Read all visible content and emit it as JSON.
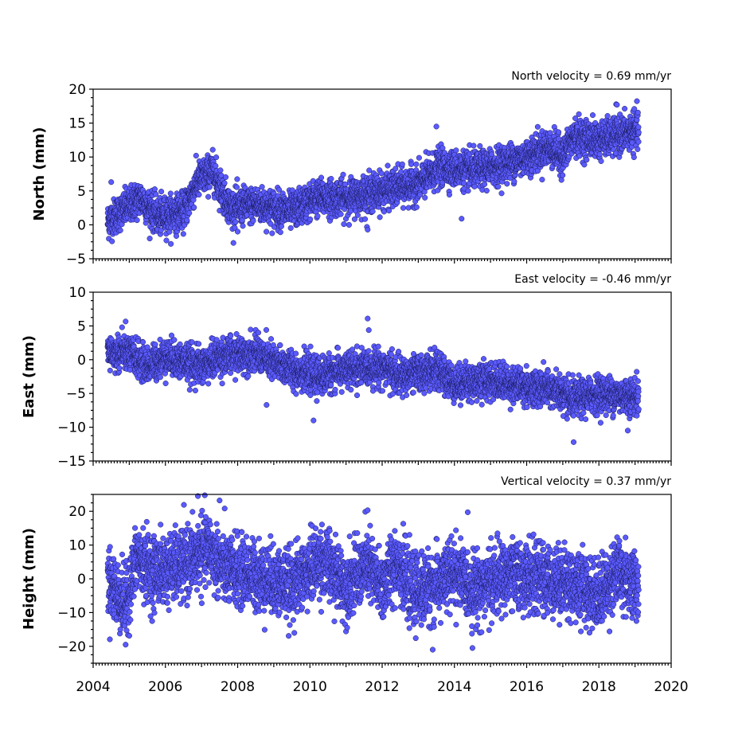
{
  "chart_data": [
    {
      "type": "scatter",
      "annotation": "North velocity = 0.69 mm/yr",
      "ylabel": "North (mm)",
      "xlim": [
        2004,
        2020
      ],
      "ylim": [
        -5,
        20
      ],
      "yticks": [
        -5,
        0,
        5,
        10,
        15,
        20
      ],
      "x_start": 2004.4,
      "x_end": 2019.1,
      "trend": [
        [
          2004.4,
          0.5
        ],
        [
          2005.3,
          4.0
        ],
        [
          2005.8,
          1.2
        ],
        [
          2006.5,
          2.0
        ],
        [
          2006.9,
          6.5
        ],
        [
          2007.3,
          8.0
        ],
        [
          2007.8,
          2.5
        ],
        [
          2008.5,
          3.0
        ],
        [
          2009.0,
          2.5
        ],
        [
          2009.5,
          2.0
        ],
        [
          2010.2,
          4.0
        ],
        [
          2011.0,
          4.0
        ],
        [
          2012.0,
          5.0
        ],
        [
          2013.0,
          6.0
        ],
        [
          2013.6,
          8.5
        ],
        [
          2014.5,
          8.0
        ],
        [
          2015.0,
          8.5
        ],
        [
          2016.0,
          10.0
        ],
        [
          2016.6,
          11.5
        ],
        [
          2017.0,
          10.0
        ],
        [
          2017.3,
          13.0
        ],
        [
          2018.0,
          12.5
        ],
        [
          2019.1,
          14.0
        ]
      ],
      "scatter_sd": 1.3,
      "outliers": [
        [
          2004.5,
          6.3
        ],
        [
          2013.5,
          14.5
        ],
        [
          2014.2,
          0.9
        ],
        [
          2011.6,
          -0.7
        ],
        [
          2018.5,
          17.7
        ],
        [
          2008.0,
          -1.0
        ]
      ]
    },
    {
      "type": "scatter",
      "annotation": "East velocity = -0.46 mm/yr",
      "ylabel": "East (mm)",
      "xlim": [
        2004,
        2020
      ],
      "ylim": [
        -15,
        10
      ],
      "yticks": [
        -15,
        -10,
        -5,
        0,
        5,
        10
      ],
      "x_start": 2004.4,
      "x_end": 2019.1,
      "trend": [
        [
          2004.4,
          1.0
        ],
        [
          2005.0,
          1.0
        ],
        [
          2005.5,
          -1.0
        ],
        [
          2006.0,
          0.5
        ],
        [
          2007.0,
          -1.0
        ],
        [
          2007.5,
          0.5
        ],
        [
          2008.5,
          1.0
        ],
        [
          2009.0,
          -0.5
        ],
        [
          2010.2,
          -2.5
        ],
        [
          2011.0,
          -1.5
        ],
        [
          2012.0,
          -1.0
        ],
        [
          2012.5,
          -2.5
        ],
        [
          2013.5,
          -1.5
        ],
        [
          2014.0,
          -3.5
        ],
        [
          2015.0,
          -3.0
        ],
        [
          2016.0,
          -4.0
        ],
        [
          2016.8,
          -4.5
        ],
        [
          2017.2,
          -6.0
        ],
        [
          2018.0,
          -5.0
        ],
        [
          2019.1,
          -5.5
        ]
      ],
      "scatter_sd": 1.3,
      "outliers": [
        [
          2004.8,
          4.8
        ],
        [
          2011.6,
          6.1
        ],
        [
          2010.1,
          -9.0
        ],
        [
          2017.3,
          -12.2
        ],
        [
          2018.8,
          -10.5
        ],
        [
          2008.8,
          -6.7
        ]
      ]
    },
    {
      "type": "scatter",
      "annotation": "Vertical velocity = 0.37 mm/yr",
      "ylabel": "Height (mm)",
      "xlim": [
        2004,
        2020
      ],
      "ylim": [
        -25,
        25
      ],
      "yticks": [
        -20,
        -10,
        0,
        10,
        20
      ],
      "x_start": 2004.4,
      "x_end": 2019.1,
      "trend": [
        [
          2004.4,
          0.0
        ],
        [
          2004.9,
          -8.0
        ],
        [
          2005.2,
          6.0
        ],
        [
          2005.7,
          2.0
        ],
        [
          2006.5,
          4.0
        ],
        [
          2007.2,
          9.0
        ],
        [
          2007.6,
          3.0
        ],
        [
          2008.5,
          1.0
        ],
        [
          2009.5,
          -2.0
        ],
        [
          2010.3,
          6.0
        ],
        [
          2011.0,
          -2.0
        ],
        [
          2011.6,
          4.0
        ],
        [
          2012.0,
          -3.0
        ],
        [
          2012.4,
          6.0
        ],
        [
          2012.8,
          -4.0
        ],
        [
          2013.5,
          -2.0
        ],
        [
          2014.0,
          2.0
        ],
        [
          2014.5,
          -3.0
        ],
        [
          2015.5,
          1.0
        ],
        [
          2016.5,
          0.0
        ],
        [
          2017.5,
          -2.0
        ],
        [
          2018.0,
          -5.0
        ],
        [
          2018.5,
          2.0
        ],
        [
          2019.1,
          -2.0
        ]
      ],
      "scatter_sd": 5.0,
      "outliers": [
        [
          2006.9,
          24.5
        ],
        [
          2007.5,
          23.2
        ],
        [
          2013.4,
          -21.0
        ],
        [
          2014.5,
          -20.5
        ],
        [
          2011.6,
          20.3
        ],
        [
          2004.9,
          -19.5
        ]
      ]
    }
  ],
  "xaxis": {
    "tick_labels": [
      "2004",
      "2006",
      "2008",
      "2010",
      "2012",
      "2014",
      "2016",
      "2018",
      "2020"
    ]
  },
  "style": {
    "marker_fill": "#5a5aff",
    "marker_edge": "#1a1a5a"
  }
}
